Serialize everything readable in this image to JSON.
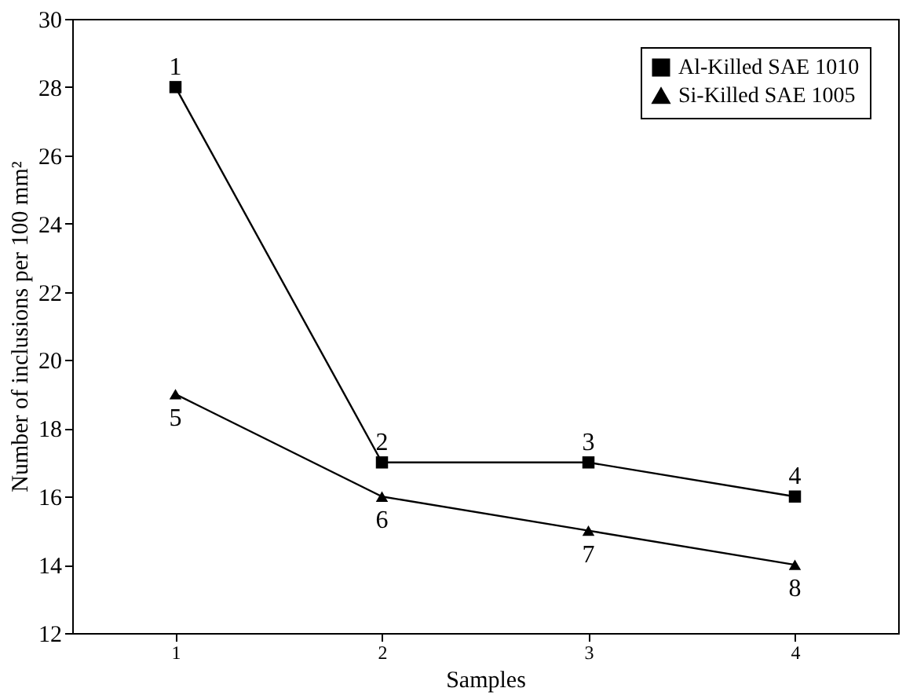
{
  "chart_data": {
    "type": "line",
    "xlabel": "Samples",
    "ylabel": "Number of inclusions per 100 mm²",
    "xlim": [
      0.5,
      4.5
    ],
    "xticks": [
      1,
      2,
      3,
      4
    ],
    "ylim": [
      12,
      30
    ],
    "yticks": [
      12,
      14,
      16,
      18,
      20,
      22,
      24,
      26,
      28,
      30
    ],
    "grid": false,
    "legend": "top right",
    "line_style": "solid",
    "series": [
      {
        "name": "Al-Killed SAE 1010",
        "color": "#000000",
        "marker": "square",
        "x": [
          1,
          2,
          3,
          4
        ],
        "values": [
          28,
          17,
          17,
          16
        ]
      },
      {
        "name": "Si-Killed SAE 1005",
        "color": "#000000",
        "marker": "triangle",
        "x": [
          1,
          2,
          3,
          4
        ],
        "values": [
          19,
          16,
          15,
          14
        ]
      }
    ],
    "annotations": [
      {
        "text": "1",
        "x": 1,
        "y": 28
      },
      {
        "text": "2",
        "x": 2,
        "y": 17
      },
      {
        "text": "3",
        "x": 3,
        "y": 17
      },
      {
        "text": "4",
        "x": 4,
        "y": 16
      },
      {
        "text": "5",
        "x": 1,
        "y": 19
      },
      {
        "text": "6",
        "x": 2,
        "y": 16
      },
      {
        "text": "7",
        "x": 3,
        "y": 15
      },
      {
        "text": "8",
        "x": 4,
        "y": 14
      }
    ]
  }
}
